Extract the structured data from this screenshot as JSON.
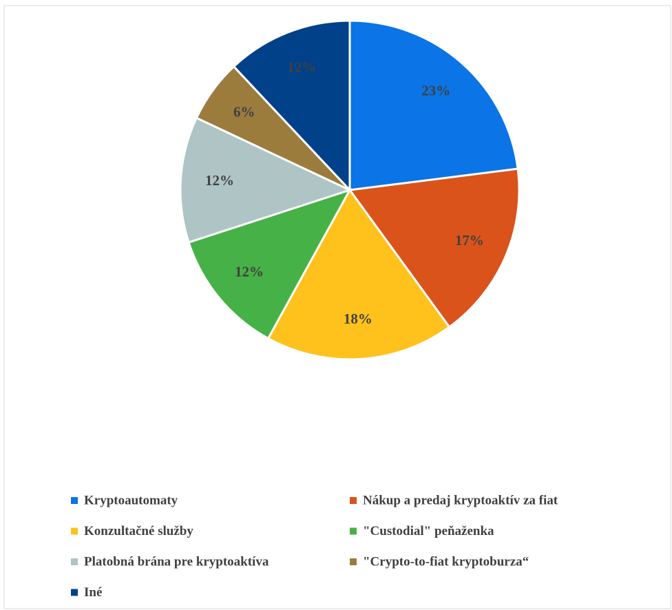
{
  "chart_data": {
    "type": "pie",
    "categories": [
      "Kryptoautomaty",
      "Nákup a predaj kryptoaktív za fiat",
      "Konzultačné služby",
      "\"Custodial\" peňaženka",
      "Platobná brána pre kryptoaktíva",
      "\"Crypto-to-fiat kryptoburza“",
      "Iné"
    ],
    "values": [
      23,
      17,
      18,
      12,
      12,
      6,
      12
    ],
    "value_labels": [
      "23%",
      "17%",
      "18%",
      "12%",
      "12%",
      "6%",
      "12%"
    ],
    "colors": [
      "#0B74E6",
      "#DA531B",
      "#FFC11C",
      "#46B146",
      "#AFC4C4",
      "#9B7C3D",
      "#01418A"
    ],
    "legend": "bottom"
  }
}
